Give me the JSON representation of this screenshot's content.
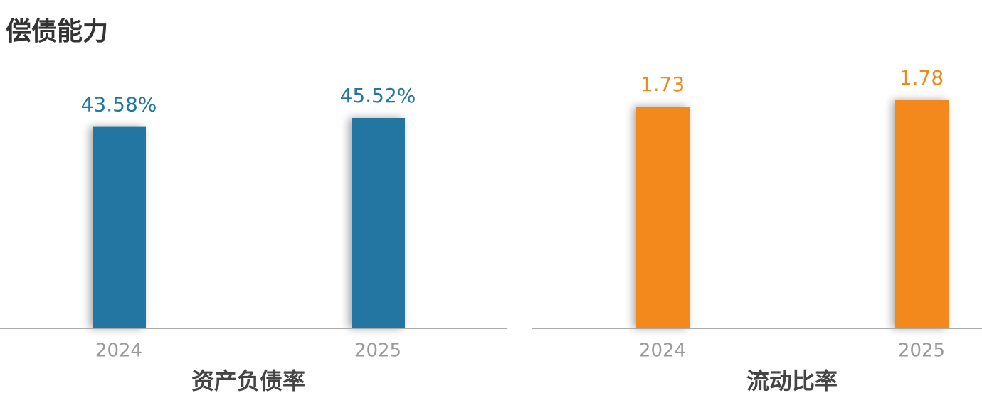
{
  "title": "偿债能力",
  "chart_data": [
    {
      "type": "bar",
      "x_label": "资产负债率",
      "categories": [
        "2024",
        "2025"
      ],
      "values": [
        43.58,
        45.52
      ],
      "value_labels": [
        "43.58%",
        "45.52%"
      ],
      "color": "#2276a1"
    },
    {
      "type": "bar",
      "x_label": "流动比率",
      "categories": [
        "2024",
        "2025"
      ],
      "values": [
        1.73,
        1.78
      ],
      "value_labels": [
        "1.73",
        "1.78"
      ],
      "color": "#f3881a"
    }
  ]
}
